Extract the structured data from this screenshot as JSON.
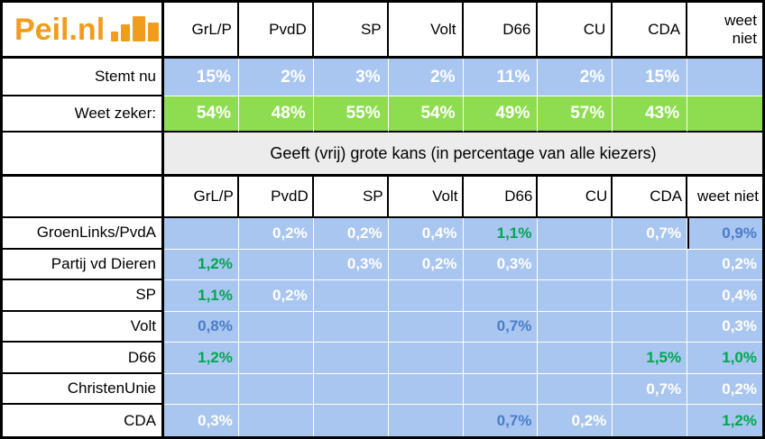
{
  "logo": {
    "text": "Peil.nl"
  },
  "columns": [
    "GrL/P",
    "PvdD",
    "SP",
    "Volt",
    "D66",
    "CU",
    "CDA",
    "weet niet"
  ],
  "top_table": {
    "rows": [
      {
        "label": "Stemt nu",
        "values": [
          "15%",
          "2%",
          "3%",
          "2%",
          "11%",
          "2%",
          "15%",
          ""
        ]
      },
      {
        "label": "Weet zeker:",
        "values": [
          "54%",
          "48%",
          "55%",
          "54%",
          "49%",
          "57%",
          "43%",
          ""
        ]
      }
    ]
  },
  "section_title": "Geeft (vrij) grote kans (in percentage van alle kiezers)",
  "matrix": {
    "columns": [
      "GrL/P",
      "PvdD",
      "SP",
      "Volt",
      "D66",
      "CU",
      "CDA",
      "weet niet"
    ],
    "rows": [
      {
        "label": "GroenLinks/PvdA",
        "cells": [
          {
            "v": "",
            "hl": ""
          },
          {
            "v": "0,2%",
            "hl": "white"
          },
          {
            "v": "0,2%",
            "hl": "white"
          },
          {
            "v": "0,4%",
            "hl": "white"
          },
          {
            "v": "1,1%",
            "hl": "green"
          },
          {
            "v": "",
            "hl": ""
          },
          {
            "v": "0,7%",
            "hl": "white"
          },
          {
            "v": "0,9%",
            "hl": "blue"
          }
        ]
      },
      {
        "label": "Partij vd Dieren",
        "cells": [
          {
            "v": "1,2%",
            "hl": "green"
          },
          {
            "v": "",
            "hl": ""
          },
          {
            "v": "0,3%",
            "hl": "white"
          },
          {
            "v": "0,2%",
            "hl": "white"
          },
          {
            "v": "0,3%",
            "hl": "white"
          },
          {
            "v": "",
            "hl": ""
          },
          {
            "v": "",
            "hl": ""
          },
          {
            "v": "0,2%",
            "hl": "white"
          }
        ]
      },
      {
        "label": "SP",
        "cells": [
          {
            "v": "1,1%",
            "hl": "green"
          },
          {
            "v": "0,2%",
            "hl": "white"
          },
          {
            "v": "",
            "hl": ""
          },
          {
            "v": "",
            "hl": ""
          },
          {
            "v": "",
            "hl": ""
          },
          {
            "v": "",
            "hl": ""
          },
          {
            "v": "",
            "hl": ""
          },
          {
            "v": "0,4%",
            "hl": "white"
          }
        ]
      },
      {
        "label": "Volt",
        "cells": [
          {
            "v": "0,8%",
            "hl": "blue"
          },
          {
            "v": "",
            "hl": ""
          },
          {
            "v": "",
            "hl": ""
          },
          {
            "v": "",
            "hl": ""
          },
          {
            "v": "0,7%",
            "hl": "blue"
          },
          {
            "v": "",
            "hl": ""
          },
          {
            "v": "",
            "hl": ""
          },
          {
            "v": "0,3%",
            "hl": "white"
          }
        ]
      },
      {
        "label": "D66",
        "cells": [
          {
            "v": "1,2%",
            "hl": "green"
          },
          {
            "v": "",
            "hl": ""
          },
          {
            "v": "",
            "hl": ""
          },
          {
            "v": "",
            "hl": ""
          },
          {
            "v": "",
            "hl": ""
          },
          {
            "v": "",
            "hl": ""
          },
          {
            "v": "1,5%",
            "hl": "green"
          },
          {
            "v": "1,0%",
            "hl": "green"
          }
        ]
      },
      {
        "label": "ChristenUnie",
        "cells": [
          {
            "v": "",
            "hl": ""
          },
          {
            "v": "",
            "hl": ""
          },
          {
            "v": "",
            "hl": ""
          },
          {
            "v": "",
            "hl": ""
          },
          {
            "v": "",
            "hl": ""
          },
          {
            "v": "",
            "hl": ""
          },
          {
            "v": "0,7%",
            "hl": "white"
          },
          {
            "v": "0,2%",
            "hl": "white"
          }
        ]
      },
      {
        "label": "CDA",
        "cells": [
          {
            "v": "0,3%",
            "hl": "white"
          },
          {
            "v": "",
            "hl": ""
          },
          {
            "v": "",
            "hl": ""
          },
          {
            "v": "",
            "hl": ""
          },
          {
            "v": "0,7%",
            "hl": "blue"
          },
          {
            "v": "0,2%",
            "hl": "white"
          },
          {
            "v": "",
            "hl": ""
          },
          {
            "v": "1,2%",
            "hl": "green"
          }
        ]
      }
    ]
  },
  "chart_data": [
    {
      "type": "table",
      "title": "Peil.nl stemintenties",
      "columns": [
        "",
        "GrL/P",
        "PvdD",
        "SP",
        "Volt",
        "D66",
        "CU",
        "CDA",
        "weet niet"
      ],
      "rows": [
        [
          "Stemt nu",
          "15%",
          "2%",
          "3%",
          "2%",
          "11%",
          "2%",
          "15%",
          ""
        ],
        [
          "Weet zeker:",
          "54%",
          "48%",
          "55%",
          "54%",
          "49%",
          "57%",
          "43%",
          ""
        ]
      ]
    },
    {
      "type": "table",
      "title": "Geeft (vrij) grote kans (in percentage van alle kiezers)",
      "columns": [
        "",
        "GrL/P",
        "PvdD",
        "SP",
        "Volt",
        "D66",
        "CU",
        "CDA",
        "weet niet"
      ],
      "rows": [
        [
          "GroenLinks/PvdA",
          "",
          "0,2%",
          "0,2%",
          "0,4%",
          "1,1%",
          "",
          "0,7%",
          "0,9%"
        ],
        [
          "Partij vd Dieren",
          "1,2%",
          "",
          "0,3%",
          "0,2%",
          "0,3%",
          "",
          "",
          "0,2%"
        ],
        [
          "SP",
          "1,1%",
          "0,2%",
          "",
          "",
          "",
          "",
          "",
          "0,4%"
        ],
        [
          "Volt",
          "0,8%",
          "",
          "",
          "",
          "0,7%",
          "",
          "",
          "0,3%"
        ],
        [
          "D66",
          "1,2%",
          "",
          "",
          "",
          "",
          "",
          "1,5%",
          "1,0%"
        ],
        [
          "ChristenUnie",
          "",
          "",
          "",
          "",
          "",
          "",
          "0,7%",
          "0,2%"
        ],
        [
          "CDA",
          "0,3%",
          "",
          "",
          "",
          "0,7%",
          "0,2%",
          "",
          "1,2%"
        ]
      ]
    }
  ],
  "colors": {
    "logo_orange": "#F09D1D",
    "cell_blue": "#A9C6F0",
    "cell_green": "#8EDC50",
    "band_gray": "#ECECEC",
    "value_white": "#FFFFFF",
    "value_green": "#00A651",
    "value_blue": "#4A7CC8",
    "border_black": "#000000"
  }
}
